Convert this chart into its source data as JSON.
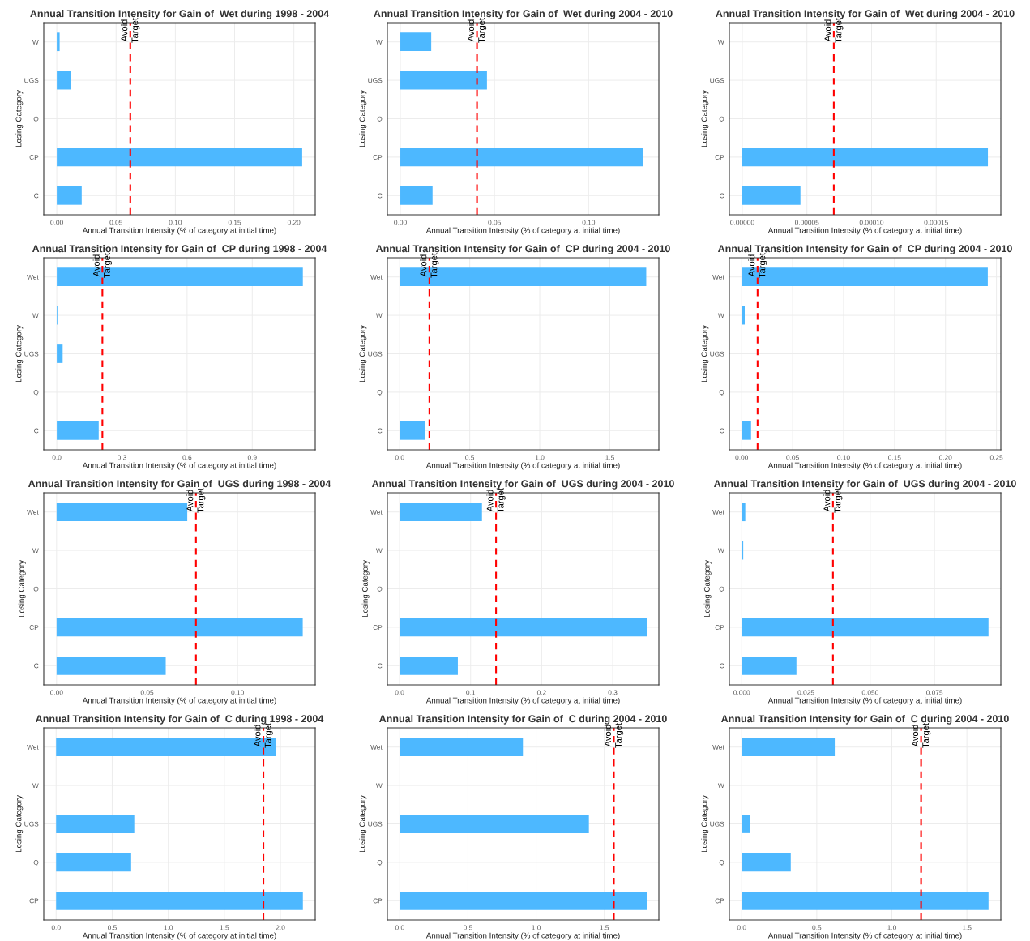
{
  "chart_data": [
    {
      "type": "bar",
      "orientation": "horizontal",
      "title": "Annual Transition Intensity for Gain of  Wet during 1998 - 2004",
      "xlabel": "Annual Transition Intensity (% of category at initial time)",
      "ylabel": "Losing Category",
      "categories": [
        "W",
        "UGS",
        "Q",
        "CP",
        "C"
      ],
      "values": [
        0.0024,
        0.012,
        0,
        0.207,
        0.021
      ],
      "color": "#4db8ff",
      "xlim": [
        -0.011,
        0.218
      ],
      "xticks": [
        {
          "value": 0,
          "label": "0.00"
        },
        0.05,
        {
          "value": 0.1,
          "label": "0.10"
        },
        0.15,
        {
          "value": 0.2,
          "label": "0.20"
        }
      ],
      "grid": true,
      "ref_lines": [
        {
          "axis": "x",
          "value": 0.062,
          "color": "#ff0000",
          "line_style": "dashed"
        }
      ],
      "annotations": [
        {
          "text": "Avoid",
          "x": 0.062,
          "y": "W"
        },
        {
          "text": "Target",
          "x": 0.062,
          "y": "W"
        }
      ]
    },
    {
      "type": "bar",
      "orientation": "horizontal",
      "title": "Annual Transition Intensity for Gain of  Wet during 2004 - 2010",
      "xlabel": "Annual Transition Intensity (% of category at initial time)",
      "ylabel": "Losing Category",
      "categories": [
        "W",
        "UGS",
        "Q",
        "CP",
        "C"
      ],
      "values": [
        0.0164,
        0.046,
        0,
        0.129,
        0.0171
      ],
      "color": "#4db8ff",
      "xlim": [
        -0.0069,
        0.1373
      ],
      "xticks": [
        {
          "value": 0,
          "label": "0.00"
        },
        0.05,
        {
          "value": 0.1,
          "label": "0.10"
        }
      ],
      "grid": true,
      "ref_lines": [
        {
          "axis": "x",
          "value": 0.0407,
          "color": "#ff0000",
          "line_style": "dashed"
        }
      ],
      "annotations": [
        {
          "text": "Avoid",
          "x": 0.0407,
          "y": "W"
        },
        {
          "text": "Target",
          "x": 0.0407,
          "y": "W"
        }
      ]
    },
    {
      "type": "bar",
      "orientation": "horizontal",
      "title": "Annual Transition Intensity for Gain of  Wet during 2004 - 2010",
      "xlabel": "Annual Transition Intensity (% of category at initial time)",
      "ylabel": "Losing Category",
      "categories": [
        "W",
        "UGS",
        "Q",
        "CP",
        "C"
      ],
      "values": [
        0,
        0,
        0,
        0.00019,
        4.5e-05
      ],
      "color": "#4db8ff",
      "xlim": [
        -1e-05,
        0.0002
      ],
      "xticks": [
        {
          "value": 0,
          "label": "0.00000"
        },
        {
          "value": 5e-05,
          "label": "0.00005"
        },
        {
          "value": 0.0001,
          "label": "0.00010"
        },
        0.00015
      ],
      "grid": true,
      "ref_lines": [
        {
          "axis": "x",
          "value": 7.08e-05,
          "color": "#ff0000",
          "line_style": "dashed"
        }
      ],
      "annotations": [
        {
          "text": "Avoid",
          "x": 7.08e-05,
          "y": "W"
        },
        {
          "text": "Target",
          "x": 7.08e-05,
          "y": "W"
        }
      ]
    },
    {
      "type": "bar",
      "orientation": "horizontal",
      "title": "Annual Transition Intensity for Gain of  CP during 1998 - 2004",
      "xlabel": "Annual Transition Intensity (% of category at initial time)",
      "ylabel": "Losing Category",
      "categories": [
        "Wet",
        "W",
        "UGS",
        "Q",
        "C"
      ],
      "values": [
        1.133,
        0.003,
        0.027,
        0,
        0.193
      ],
      "color": "#4db8ff",
      "xlim": [
        -0.06,
        1.19
      ],
      "xticks": [
        {
          "value": 0,
          "label": "0.0"
        },
        0.3,
        0.6,
        0.9
      ],
      "grid": true,
      "ref_lines": [
        {
          "axis": "x",
          "value": 0.21,
          "color": "#ff0000",
          "line_style": "dashed"
        }
      ],
      "annotations": [
        {
          "text": "Avoid",
          "x": 0.21,
          "y": "Wet"
        },
        {
          "text": "Target",
          "x": 0.21,
          "y": "Wet"
        }
      ]
    },
    {
      "type": "bar",
      "orientation": "horizontal",
      "title": "Annual Transition Intensity for Gain of  CP during 2004 - 2010",
      "xlabel": "Annual Transition Intensity (% of category at initial time)",
      "ylabel": "Losing Category",
      "categories": [
        "Wet",
        "W",
        "UGS",
        "Q",
        "C"
      ],
      "values": [
        1.76,
        0,
        0,
        0,
        0.181
      ],
      "color": "#4db8ff",
      "xlim": [
        -0.088,
        1.85
      ],
      "xticks": [
        {
          "value": 0,
          "label": "0.0"
        },
        0.5,
        {
          "value": 1,
          "label": "1.0"
        },
        1.5
      ],
      "grid": true,
      "ref_lines": [
        {
          "axis": "x",
          "value": 0.212,
          "color": "#ff0000",
          "line_style": "dashed"
        }
      ],
      "annotations": [
        {
          "text": "Avoid",
          "x": 0.212,
          "y": "Wet"
        },
        {
          "text": "Target",
          "x": 0.212,
          "y": "Wet"
        }
      ]
    },
    {
      "type": "bar",
      "orientation": "horizontal",
      "title": "Annual Transition Intensity for Gain of  CP during 2004 - 2010",
      "xlabel": "Annual Transition Intensity (% of category at initial time)",
      "ylabel": "Losing Category",
      "categories": [
        "Wet",
        "W",
        "UGS",
        "Q",
        "C"
      ],
      "values": [
        0.2415,
        0.003,
        0,
        0,
        0.0092
      ],
      "color": "#4db8ff",
      "xlim": [
        -0.0121,
        0.2543
      ],
      "xticks": [
        {
          "value": 0,
          "label": "0.00"
        },
        0.05,
        {
          "value": 0.1,
          "label": "0.10"
        },
        0.15,
        {
          "value": 0.2,
          "label": "0.20"
        },
        0.25
      ],
      "grid": true,
      "ref_lines": [
        {
          "axis": "x",
          "value": 0.0156,
          "color": "#ff0000",
          "line_style": "dashed"
        }
      ],
      "annotations": [
        {
          "text": "Avoid",
          "x": 0.0156,
          "y": "Wet"
        },
        {
          "text": "Target",
          "x": 0.0156,
          "y": "Wet"
        }
      ]
    },
    {
      "type": "bar",
      "orientation": "horizontal",
      "title": "Annual Transition Intensity for Gain of  UGS during 1998 - 2004",
      "xlabel": "Annual Transition Intensity (% of category at initial time)",
      "ylabel": "Losing Category",
      "categories": [
        "Wet",
        "W",
        "Q",
        "CP",
        "C"
      ],
      "values": [
        0.0722,
        0,
        0,
        0.136,
        0.0603
      ],
      "color": "#4db8ff",
      "xlim": [
        -0.0071,
        0.1429
      ],
      "xticks": [
        {
          "value": 0,
          "label": "0.00"
        },
        0.05,
        {
          "value": 0.1,
          "label": "0.10"
        }
      ],
      "grid": true,
      "ref_lines": [
        {
          "axis": "x",
          "value": 0.077,
          "color": "#ff0000",
          "line_style": "dashed"
        }
      ],
      "annotations": [
        {
          "text": "Avoid",
          "x": 0.077,
          "y": "Wet"
        },
        {
          "text": "Target",
          "x": 0.077,
          "y": "Wet"
        }
      ]
    },
    {
      "type": "bar",
      "orientation": "horizontal",
      "title": "Annual Transition Intensity for Gain of  UGS during 2004 - 2010",
      "xlabel": "Annual Transition Intensity (% of category at initial time)",
      "ylabel": "Losing Category",
      "categories": [
        "Wet",
        "W",
        "Q",
        "CP",
        "C"
      ],
      "values": [
        0.116,
        0,
        0,
        0.348,
        0.082
      ],
      "color": "#4db8ff",
      "xlim": [
        -0.0172,
        0.365
      ],
      "xticks": [
        {
          "value": 0,
          "label": "0.0"
        },
        0.1,
        0.2,
        0.3
      ],
      "grid": true,
      "ref_lines": [
        {
          "axis": "x",
          "value": 0.1358,
          "color": "#ff0000",
          "line_style": "dashed"
        }
      ],
      "annotations": [
        {
          "text": "Avoid",
          "x": 0.1358,
          "y": "Wet"
        },
        {
          "text": "Target",
          "x": 0.1358,
          "y": "Wet"
        }
      ]
    },
    {
      "type": "bar",
      "orientation": "horizontal",
      "title": "Annual Transition Intensity for Gain of  UGS during 2004 - 2010",
      "xlabel": "Annual Transition Intensity (% of category at initial time)",
      "ylabel": "Losing Category",
      "categories": [
        "Wet",
        "W",
        "Q",
        "CP",
        "C"
      ],
      "values": [
        0.0014,
        0.0006,
        0,
        0.096,
        0.0213
      ],
      "color": "#4db8ff",
      "xlim": [
        -0.0048,
        0.1008
      ],
      "xticks": [
        {
          "value": 0,
          "label": "0.000"
        },
        0.025,
        {
          "value": 0.05,
          "label": "0.050"
        },
        0.075
      ],
      "grid": true,
      "ref_lines": [
        {
          "axis": "x",
          "value": 0.0355,
          "color": "#ff0000",
          "line_style": "dashed"
        }
      ],
      "annotations": [
        {
          "text": "Avoid",
          "x": 0.0355,
          "y": "Wet"
        },
        {
          "text": "Target",
          "x": 0.0355,
          "y": "Wet"
        }
      ]
    },
    {
      "type": "bar",
      "orientation": "horizontal",
      "title": "Annual Transition Intensity for Gain of  C during 1998 - 2004",
      "xlabel": "Annual Transition Intensity (% of category at initial time)",
      "ylabel": "Losing Category",
      "categories": [
        "Wet",
        "W",
        "UGS",
        "Q",
        "CP"
      ],
      "values": [
        1.96,
        0,
        0.697,
        0.669,
        2.2
      ],
      "color": "#4db8ff",
      "xlim": [
        -0.11,
        2.31
      ],
      "xticks": [
        {
          "value": 0,
          "label": "0.0"
        },
        0.5,
        {
          "value": 1,
          "label": "1.0"
        },
        1.5,
        {
          "value": 2,
          "label": "2.0"
        }
      ],
      "grid": true,
      "ref_lines": [
        {
          "axis": "x",
          "value": 1.848,
          "color": "#ff0000",
          "line_style": "dashed"
        }
      ],
      "annotations": [
        {
          "text": "Avoid",
          "x": 1.848,
          "y": "Wet"
        },
        {
          "text": "Target",
          "x": 1.848,
          "y": "Wet"
        }
      ]
    },
    {
      "type": "bar",
      "orientation": "horizontal",
      "title": "Annual Transition Intensity for Gain of  C during 2004 - 2010",
      "xlabel": "Annual Transition Intensity (% of category at initial time)",
      "ylabel": "Losing Category",
      "categories": [
        "Wet",
        "W",
        "UGS",
        "Q",
        "CP"
      ],
      "values": [
        0.903,
        0,
        1.387,
        0,
        1.812
      ],
      "color": "#4db8ff",
      "xlim": [
        -0.091,
        1.9
      ],
      "xticks": [
        {
          "value": 0,
          "label": "0.0"
        },
        0.5,
        {
          "value": 1,
          "label": "1.0"
        },
        1.5
      ],
      "grid": true,
      "ref_lines": [
        {
          "axis": "x",
          "value": 1.57,
          "color": "#ff0000",
          "line_style": "dashed"
        }
      ],
      "annotations": [
        {
          "text": "Avoid",
          "x": 1.57,
          "y": "Wet"
        },
        {
          "text": "Target",
          "x": 1.57,
          "y": "Wet"
        }
      ]
    },
    {
      "type": "bar",
      "orientation": "horizontal",
      "title": "Annual Transition Intensity for Gain of  C during 2004 - 2010",
      "xlabel": "Annual Transition Intensity (% of category at initial time)",
      "ylabel": "Losing Category",
      "categories": [
        "Wet",
        "W",
        "UGS",
        "Q",
        "CP"
      ],
      "values": [
        0.62,
        0.003,
        0.058,
        0.327,
        1.644
      ],
      "color": "#4db8ff",
      "xlim": [
        -0.082,
        1.726
      ],
      "xticks": [
        {
          "value": 0,
          "label": "0.0"
        },
        0.5,
        {
          "value": 1,
          "label": "1.0"
        },
        1.5
      ],
      "grid": true,
      "ref_lines": [
        {
          "axis": "x",
          "value": 1.195,
          "color": "#ff0000",
          "line_style": "dashed"
        }
      ],
      "annotations": [
        {
          "text": "Avoid",
          "x": 1.195,
          "y": "Wet"
        },
        {
          "text": "Target",
          "x": 1.195,
          "y": "Wet"
        }
      ]
    }
  ]
}
